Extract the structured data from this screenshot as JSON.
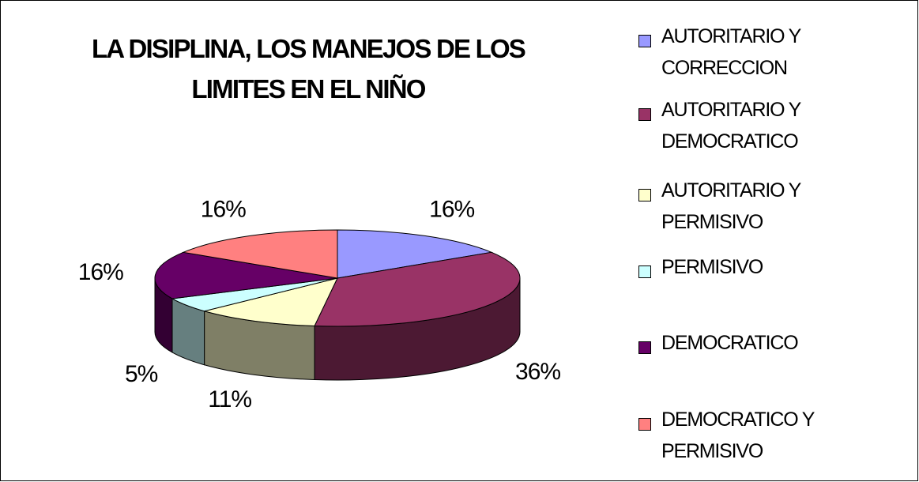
{
  "chart_data": {
    "type": "pie",
    "title": "LA DISIPLINA, LOS MANEJOS DE LOS LIMITES EN EL NIÑO",
    "categories": [
      "AUTORITARIO Y CORRECCION",
      "AUTORITARIO Y DEMOCRATICO",
      "AUTORITARIO Y PERMISIVO",
      "PERMISIVO",
      "DEMOCRATICO",
      "DEMOCRATICO Y PERMISIVO"
    ],
    "values": [
      16,
      36,
      11,
      5,
      16,
      16
    ],
    "value_labels": [
      "16%",
      "36%",
      "11%",
      "5%",
      "16%",
      "16%"
    ],
    "colors": [
      "#9999ff",
      "#993366",
      "#ffffcc",
      "#ccffff",
      "#660066",
      "#ff8080"
    ],
    "legend": "right"
  }
}
